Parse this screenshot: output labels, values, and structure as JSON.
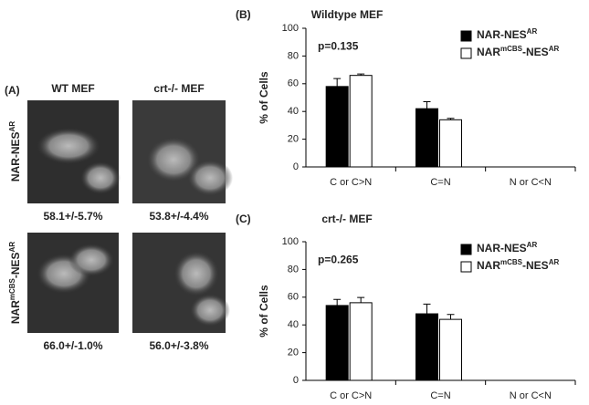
{
  "panel_a": {
    "label": "(A)",
    "columns": [
      "WT MEF",
      "crt-/- MEF"
    ],
    "rows": [
      {
        "label": [
          {
            "text": "NAR-NES"
          },
          {
            "text": "AR",
            "sup": true
          }
        ],
        "values": [
          "58.1+/-5.7%",
          "53.8+/-4.4%"
        ]
      },
      {
        "label": [
          {
            "text": "NAR"
          },
          {
            "text": "mCBS",
            "sup": true
          },
          {
            "text": "-NES"
          },
          {
            "text": "AR",
            "sup": true
          }
        ],
        "values": [
          "66.0+/-1.0%",
          "56.0+/-3.8%"
        ]
      }
    ]
  },
  "chart_data": [
    {
      "type": "bar",
      "label": "(B)",
      "title": "Wildtype MEF",
      "ylabel": "% of Cells",
      "categories": [
        "C or C>N",
        "C=N",
        "N or C<N"
      ],
      "series": [
        {
          "name": [
            {
              "text": "NAR-NES"
            },
            {
              "text": "AR",
              "sup": true
            }
          ],
          "color": "#000000",
          "values": [
            58,
            42,
            0
          ],
          "errors": [
            5.7,
            5,
            0
          ]
        },
        {
          "name": [
            {
              "text": "NAR"
            },
            {
              "text": "mCBS",
              "sup": true
            },
            {
              "text": "-NES"
            },
            {
              "text": "AR",
              "sup": true
            }
          ],
          "color": "#ffffff",
          "values": [
            66,
            34,
            0
          ],
          "errors": [
            1,
            1,
            0
          ]
        }
      ],
      "annotation": "p=0.135",
      "ylim": [
        0,
        100
      ],
      "yticks": [
        0,
        20,
        40,
        60,
        80,
        100
      ]
    },
    {
      "type": "bar",
      "label": "(C)",
      "title": "crt-/- MEF",
      "ylabel": "% of Cells",
      "categories": [
        "C or C>N",
        "C=N",
        "N or C<N"
      ],
      "series": [
        {
          "name": [
            {
              "text": "NAR-NES"
            },
            {
              "text": "AR",
              "sup": true
            }
          ],
          "color": "#000000",
          "values": [
            54,
            48,
            0
          ],
          "errors": [
            4.4,
            7,
            0
          ]
        },
        {
          "name": [
            {
              "text": "NAR"
            },
            {
              "text": "mCBS",
              "sup": true
            },
            {
              "text": "-NES"
            },
            {
              "text": "AR",
              "sup": true
            }
          ],
          "color": "#ffffff",
          "values": [
            56,
            44,
            0
          ],
          "errors": [
            3.8,
            3.5,
            0
          ]
        }
      ],
      "annotation": "p=0.265",
      "ylim": [
        0,
        100
      ],
      "yticks": [
        0,
        20,
        40,
        60,
        80,
        100
      ]
    }
  ]
}
